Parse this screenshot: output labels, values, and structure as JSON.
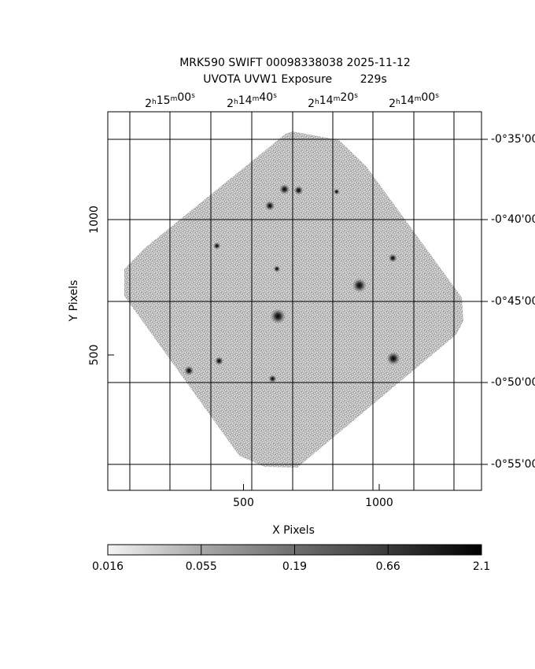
{
  "chart_data": {
    "type": "heatmap",
    "title_line1": "MRK590 SWIFT 00098338038 2025-11-12",
    "title_line2": "UVOTA UVW1 Exposure        229s",
    "xlabel": "X Pixels",
    "ylabel": "Y Pixels",
    "xlim": [
      0,
      1400
    ],
    "ylim": [
      0,
      1400
    ],
    "x_ticks": [
      500,
      1000
    ],
    "y_ticks": [
      500,
      1000
    ],
    "ra_ticks": [
      {
        "h": "2",
        "m": "15",
        "s": "00"
      },
      {
        "h": "2",
        "m": "14",
        "s": "40"
      },
      {
        "h": "2",
        "m": "14",
        "s": "20"
      },
      {
        "h": "2",
        "m": "14",
        "s": "00"
      }
    ],
    "dec_ticks": [
      "-0°35'00",
      "-0°40'00",
      "-0°45'00",
      "-0°50'00",
      "-0°55'00"
    ],
    "colorbar": {
      "ticks": [
        "0.016",
        "0.055",
        "0.19",
        "0.66",
        "2.1"
      ],
      "scale": "log",
      "range": [
        0.016,
        2.1
      ]
    },
    "grid": true,
    "sources": [
      {
        "x": 627,
        "y": 643,
        "intensity": 1.0
      },
      {
        "x": 927,
        "y": 757,
        "intensity": 0.9
      },
      {
        "x": 1052,
        "y": 487,
        "intensity": 0.85
      },
      {
        "x": 651,
        "y": 1112,
        "intensity": 0.6
      },
      {
        "x": 703,
        "y": 1108,
        "intensity": 0.5
      },
      {
        "x": 597,
        "y": 1051,
        "intensity": 0.55
      },
      {
        "x": 1050,
        "y": 858,
        "intensity": 0.45
      },
      {
        "x": 402,
        "y": 903,
        "intensity": 0.35
      },
      {
        "x": 623,
        "y": 818,
        "intensity": 0.3
      },
      {
        "x": 410,
        "y": 478,
        "intensity": 0.45
      },
      {
        "x": 299,
        "y": 442,
        "intensity": 0.55
      },
      {
        "x": 607,
        "y": 412,
        "intensity": 0.4
      },
      {
        "x": 843,
        "y": 1103,
        "intensity": 0.25
      }
    ]
  }
}
